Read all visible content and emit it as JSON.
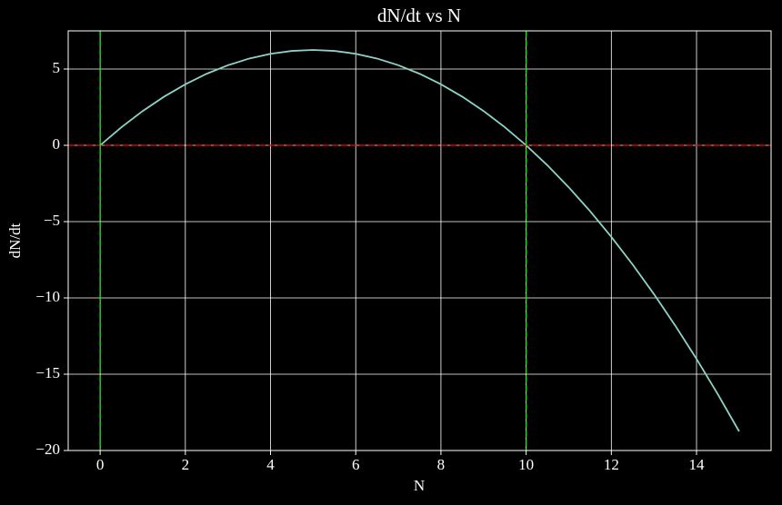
{
  "chart_data": {
    "type": "line",
    "title": "dN/dt vs N",
    "xlabel": "N",
    "ylabel": "dN/dt",
    "x": [
      0,
      0.5,
      1,
      1.5,
      2,
      2.5,
      3,
      3.5,
      4,
      4.5,
      5,
      5.5,
      6,
      6.5,
      7,
      7.5,
      8,
      8.5,
      9,
      9.5,
      10,
      10.5,
      11,
      11.5,
      12,
      12.5,
      13,
      13.5,
      14,
      14.5,
      15
    ],
    "series": [
      {
        "color": "#8dd3c7",
        "values": [
          0,
          1.1875,
          2.25,
          3.1875,
          4,
          4.6875,
          5.25,
          5.6875,
          6,
          6.1875,
          6.25,
          6.1875,
          6,
          5.6875,
          5.25,
          4.6875,
          4,
          3.1875,
          2.25,
          1.1875,
          0,
          -1.3125,
          -2.75,
          -4.3125,
          -6,
          -7.8125,
          -9.75,
          -11.8125,
          -14,
          -16.3125,
          -18.75
        ]
      }
    ],
    "hlines": [
      {
        "y": 0,
        "color": "#ff0000"
      }
    ],
    "vlines": [
      {
        "x": 0,
        "color": "#00ff00"
      },
      {
        "x": 10,
        "color": "#00ff00"
      }
    ],
    "xlim": [
      -0.75,
      15.75
    ],
    "xticks": [
      0,
      2,
      4,
      6,
      8,
      10,
      12,
      14
    ],
    "ylim": [
      -20,
      7.5
    ],
    "yticks": [
      {
        "value": -20,
        "label": "−20"
      },
      {
        "value": -15,
        "label": "−15"
      },
      {
        "value": -10,
        "label": "−10"
      },
      {
        "value": -5,
        "label": "−5"
      },
      0,
      5
    ],
    "grid": true
  }
}
